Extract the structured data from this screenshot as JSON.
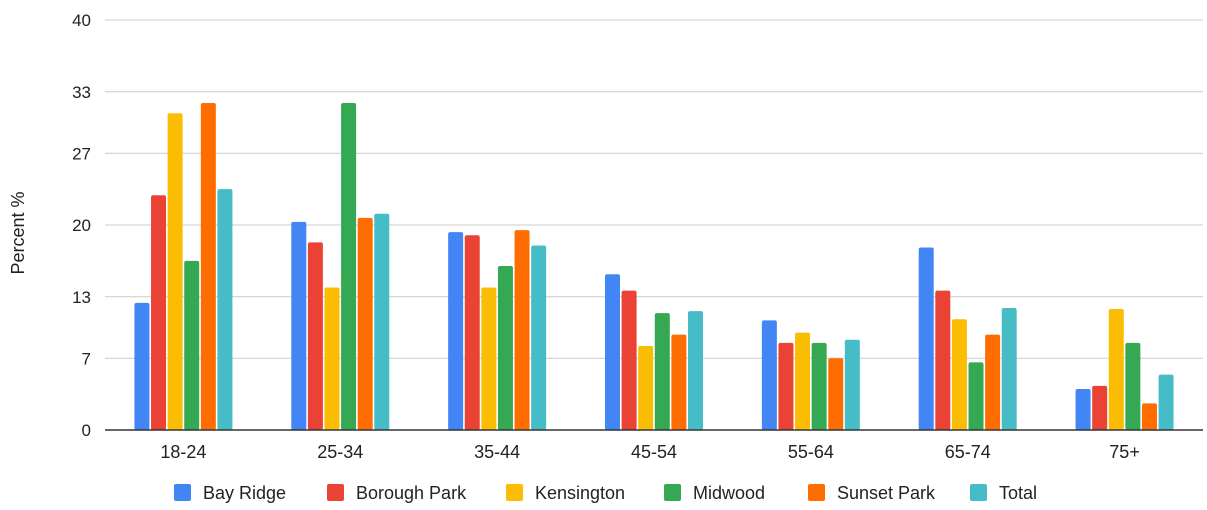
{
  "chart_data": {
    "type": "bar",
    "title": "",
    "xlabel": "",
    "ylabel": "Percent %",
    "ylim": [
      0,
      40
    ],
    "yticks": [
      0,
      7,
      13,
      20,
      27,
      33,
      40
    ],
    "grid": true,
    "legend_position": "bottom",
    "categories": [
      "18-24",
      "25-34",
      "35-44",
      "45-54",
      "55-64",
      "65-74",
      "75+"
    ],
    "series": [
      {
        "name": "Bay Ridge",
        "color": "#4285F4",
        "values": [
          12.4,
          20.3,
          19.3,
          15.2,
          10.7,
          17.8,
          4.0
        ]
      },
      {
        "name": "Borough Park",
        "color": "#EA4335",
        "values": [
          22.9,
          18.3,
          19.0,
          13.6,
          8.5,
          13.6,
          4.3
        ]
      },
      {
        "name": "Kensington",
        "color": "#FBBC04",
        "values": [
          30.9,
          13.9,
          13.9,
          8.2,
          9.5,
          10.8,
          11.8
        ]
      },
      {
        "name": "Midwood",
        "color": "#34A853",
        "values": [
          16.5,
          31.9,
          16.0,
          11.4,
          8.5,
          6.6,
          8.5
        ]
      },
      {
        "name": "Sunset Park",
        "color": "#FF6D01",
        "values": [
          31.9,
          20.7,
          19.5,
          9.3,
          7.0,
          9.3,
          2.6
        ]
      },
      {
        "name": "Total",
        "color": "#46BDC6",
        "values": [
          23.5,
          21.1,
          18.0,
          11.6,
          8.8,
          11.9,
          5.4
        ]
      }
    ]
  }
}
